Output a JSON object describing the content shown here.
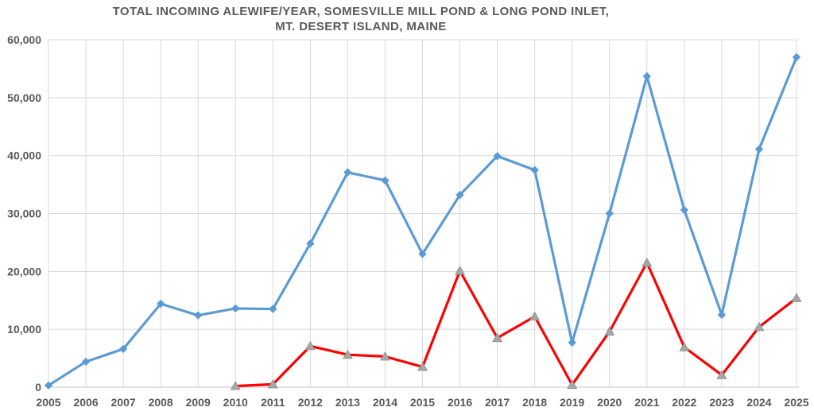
{
  "title": {
    "line1": "TOTAL INCOMING ALEWIFE/YEAR, SOMESVILLE MILL POND & LONG POND INLET,",
    "line2": "MT. DESERT ISLAND, MAINE"
  },
  "colors": {
    "background": "#FFFFFF",
    "title_text": "#595959",
    "axis_text": "#595959",
    "gridline": "#D9D9D9",
    "axis_line": "#C6C6C6",
    "series_blue": "#5B9BD5",
    "series_red": "#FF0000",
    "marker_gray_fill": "#A6A6A6",
    "marker_gray_stroke": "#8C8C8C"
  },
  "axes": {
    "y_tick_labels": [
      "0",
      "10,000",
      "20,000",
      "30,000",
      "40,000",
      "50,000",
      "60,000"
    ],
    "x_tick_labels": [
      "2005",
      "2006",
      "2007",
      "2008",
      "2009",
      "2010",
      "2011",
      "2012",
      "2013",
      "2014",
      "2015",
      "2016",
      "2017",
      "2018",
      "2019",
      "2020",
      "2021",
      "2022",
      "2023",
      "2024",
      "2025"
    ]
  },
  "chart_data": {
    "type": "line",
    "title": "TOTAL INCOMING ALEWIFE/YEAR, SOMESVILLE MILL POND & LONG POND INLET, MT. DESERT ISLAND, MAINE",
    "x": [
      2005,
      2006,
      2007,
      2008,
      2009,
      2010,
      2011,
      2012,
      2013,
      2014,
      2015,
      2016,
      2017,
      2018,
      2019,
      2020,
      2021,
      2022,
      2023,
      2024,
      2025
    ],
    "series": [
      {
        "name": "blue-series-diamond-markers",
        "color": "#5B9BD5",
        "marker": "diamond",
        "marker_color": "#5B9BD5",
        "values": [
          300,
          4400,
          6600,
          14400,
          12400,
          13600,
          13500,
          24800,
          37100,
          35700,
          23000,
          33200,
          39900,
          37500,
          7700,
          30000,
          53700,
          30600,
          12500,
          41100,
          57000
        ]
      },
      {
        "name": "red-series-gray-triangle-markers",
        "color": "#FF0000",
        "marker": "triangle",
        "marker_color": "#A6A6A6",
        "values": [
          null,
          null,
          null,
          null,
          null,
          200,
          500,
          7100,
          5600,
          5300,
          3500,
          20100,
          8500,
          12200,
          400,
          9600,
          21500,
          6900,
          2100,
          10400,
          15400
        ]
      }
    ],
    "xlabel": "",
    "ylabel": "",
    "ylim": [
      0,
      60000
    ],
    "yticks": [
      0,
      10000,
      20000,
      30000,
      40000,
      50000,
      60000
    ],
    "grid": true,
    "legend": false
  }
}
